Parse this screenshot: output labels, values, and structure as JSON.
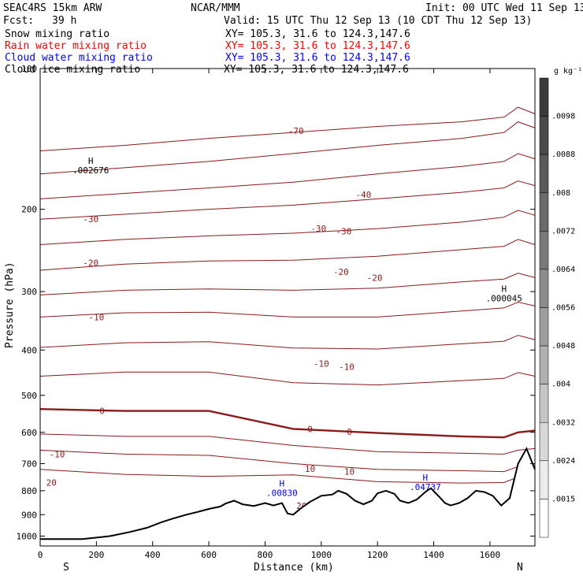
{
  "header": {
    "model": "SEAC4RS 15km ARW",
    "org": "NCAR/MMM",
    "init": "Init: 00 UTC Wed 11 Sep 13",
    "fcst_label": "Fcst:",
    "fcst_value": "39 h",
    "valid": "Valid: 15 UTC Thu 12 Sep 13 (10 CDT Thu 12 Sep 13)"
  },
  "fields": [
    {
      "name": "Snow mixing ratio",
      "xy": "XY= 105.3, 31.6 to 124.3,147.6",
      "color": "#000000"
    },
    {
      "name": "Rain water mixing ratio",
      "xy": "XY= 105.3, 31.6 to 124.3,147.6",
      "color": "#ff0000"
    },
    {
      "name": "Cloud water mixing ratio",
      "xy": "XY= 105.3, 31.6 to 124.3,147.6",
      "color": "#0000ff"
    },
    {
      "name": "Cloud ice mixing ratio",
      "xy": "XY= 105.3, 31.6 to 124.3,147.6",
      "color": "#000000"
    }
  ],
  "colorbar": {
    "unit": "g kg⁻¹",
    "labels": [
      ".0098",
      ".0088",
      ".008",
      ".0072",
      ".0064",
      ".0056",
      ".0048",
      ".004",
      ".0032",
      ".0024",
      ".0015"
    ],
    "colors": [
      "#3a3a3a",
      "#4a4a4a",
      "#5a5a5a",
      "#6a6a6a",
      "#7a7a7a",
      "#8c8c8c",
      "#9e9e9e",
      "#b0b0b0",
      "#c4c4c4",
      "#d8d8d8",
      "#ececec",
      "#ffffff"
    ]
  },
  "chart_data": {
    "type": "cross-section",
    "xlabel": "Distance (km)",
    "ylabel": "Pressure (hPa)",
    "xlim": [
      0,
      1760
    ],
    "ylim": [
      1050,
      100
    ],
    "x_ticks": [
      0,
      200,
      400,
      600,
      800,
      1000,
      1200,
      1400,
      1600
    ],
    "y_ticks": [
      100,
      200,
      300,
      400,
      500,
      600,
      700,
      800,
      900,
      1000
    ],
    "y_scale": "log",
    "endpoints": {
      "left": "S",
      "right": "N"
    },
    "temperature_contours": {
      "color": "#8b1a1a",
      "levels": [
        {
          "x": [
            0,
            300,
            600,
            900,
            1200,
            1500,
            1650,
            1700,
            1760
          ],
          "p": [
            150,
            146,
            141,
            137,
            133,
            130,
            127,
            121,
            125
          ]
        },
        {
          "x": [
            0,
            300,
            600,
            900,
            1200,
            1500,
            1650,
            1700,
            1760
          ],
          "p": [
            168,
            163,
            158,
            152,
            146,
            141,
            137,
            130,
            134
          ]
        },
        {
          "x": [
            0,
            300,
            600,
            900,
            1200,
            1500,
            1650,
            1700,
            1760
          ],
          "p": [
            190,
            185,
            180,
            175,
            168,
            162,
            158,
            152,
            156
          ]
        },
        {
          "x": [
            0,
            300,
            600,
            900,
            1200,
            1500,
            1650,
            1700,
            1760
          ],
          "p": [
            210,
            205,
            200,
            196,
            190,
            184,
            180,
            174,
            178
          ]
        },
        {
          "x": [
            0,
            300,
            600,
            900,
            1200,
            1500,
            1650,
            1700,
            1760
          ],
          "p": [
            238,
            232,
            228,
            225,
            220,
            213,
            208,
            201,
            206
          ]
        },
        {
          "x": [
            0,
            300,
            600,
            900,
            1200,
            1500,
            1650,
            1700,
            1760
          ],
          "p": [
            270,
            262,
            258,
            257,
            252,
            244,
            240,
            232,
            238
          ]
        },
        {
          "x": [
            0,
            300,
            600,
            900,
            1200,
            1500,
            1650,
            1700,
            1760
          ],
          "p": [
            305,
            298,
            296,
            298,
            295,
            286,
            282,
            274,
            280
          ]
        },
        {
          "x": [
            0,
            300,
            600,
            900,
            1200,
            1500,
            1650,
            1700,
            1760
          ],
          "p": [
            340,
            333,
            332,
            340,
            340,
            330,
            325,
            316,
            322
          ]
        },
        {
          "x": [
            0,
            300,
            600,
            900,
            1200,
            1500,
            1650,
            1700,
            1760
          ],
          "p": [
            395,
            386,
            384,
            396,
            398,
            388,
            383,
            372,
            380
          ]
        },
        {
          "x": [
            0,
            300,
            600,
            900,
            1200,
            1500,
            1650,
            1700,
            1760
          ],
          "p": [
            455,
            446,
            446,
            470,
            475,
            465,
            460,
            447,
            455
          ]
        },
        {
          "x": [
            0,
            300,
            600,
            900,
            1200,
            1500,
            1650,
            1700,
            1760
          ],
          "p": [
            535,
            540,
            540,
            590,
            602,
            612,
            615,
            600,
            595
          ]
        },
        {
          "x": [
            0,
            300,
            600,
            900,
            1200,
            1500,
            1650,
            1700,
            1760
          ],
          "p": [
            605,
            612,
            612,
            640,
            660,
            665,
            668,
            655,
            650
          ]
        },
        {
          "x": [
            0,
            300,
            600,
            900,
            1200,
            1500,
            1650,
            1700,
            1760
          ],
          "p": [
            655,
            668,
            672,
            700,
            720,
            725,
            728,
            710,
            700
          ]
        },
        {
          "x": [
            0,
            300,
            600,
            900,
            1200,
            1500,
            1650,
            1700,
            1760
          ],
          "p": [
            720,
            738,
            745,
            740,
            765,
            770,
            768,
            748,
            738
          ]
        }
      ],
      "labels": [
        {
          "text": "-70",
          "x": 910,
          "p": 136
        },
        {
          "text": "-40",
          "x": 1150,
          "p": 186
        },
        {
          "text": "-30",
          "x": 180,
          "p": 210
        },
        {
          "text": "-30",
          "x": 990,
          "p": 220
        },
        {
          "text": "-30",
          "x": 1080,
          "p": 223
        },
        {
          "text": "-20",
          "x": 180,
          "p": 260
        },
        {
          "text": "-20",
          "x": 1070,
          "p": 272
        },
        {
          "text": "-20",
          "x": 1190,
          "p": 280
        },
        {
          "text": "-10",
          "x": 200,
          "p": 340
        },
        {
          "text": "-10",
          "x": 1000,
          "p": 428
        },
        {
          "text": "-10",
          "x": 1090,
          "p": 434
        },
        {
          "text": "0",
          "x": 220,
          "p": 540
        },
        {
          "text": "0",
          "x": 960,
          "p": 590
        },
        {
          "text": "0",
          "x": 1100,
          "p": 598
        },
        {
          "text": "-10",
          "x": 60,
          "p": 668
        },
        {
          "text": "10",
          "x": 960,
          "p": 718
        },
        {
          "text": "10",
          "x": 1100,
          "p": 728
        },
        {
          "text": "20",
          "x": 40,
          "p": 768
        },
        {
          "text": "20",
          "x": 930,
          "p": 862
        }
      ]
    },
    "terrain": {
      "x": [
        0,
        150,
        250,
        320,
        380,
        430,
        470,
        520,
        560,
        600,
        640,
        660,
        690,
        720,
        760,
        800,
        830,
        860,
        880,
        900,
        930,
        960,
        1000,
        1040,
        1060,
        1090,
        1120,
        1150,
        1180,
        1200,
        1230,
        1260,
        1280,
        1310,
        1340,
        1370,
        1390,
        1420,
        1440,
        1460,
        1490,
        1520,
        1550,
        1580,
        1610,
        1640,
        1670,
        1700,
        1730,
        1760
      ],
      "p": [
        1015,
        1015,
        1000,
        980,
        960,
        935,
        918,
        900,
        888,
        875,
        865,
        852,
        840,
        855,
        862,
        850,
        860,
        850,
        895,
        900,
        870,
        845,
        820,
        815,
        800,
        812,
        840,
        855,
        840,
        810,
        800,
        812,
        840,
        850,
        835,
        805,
        790,
        825,
        850,
        860,
        850,
        830,
        800,
        805,
        820,
        860,
        830,
        700,
        650,
        720
      ]
    },
    "maxima": [
      {
        "label": "H",
        "value": ".002676",
        "x": 180,
        "p": 165,
        "color": "#000000"
      },
      {
        "label": "H",
        "value": ".000045",
        "x": 1650,
        "p": 310,
        "color": "#000000"
      },
      {
        "label": "H",
        "value": ".00830",
        "x": 860,
        "p": 808,
        "color": "#0000ff"
      },
      {
        "label": "H",
        "value": ".04737",
        "x": 1370,
        "p": 785,
        "color": "#0000ff"
      }
    ]
  }
}
